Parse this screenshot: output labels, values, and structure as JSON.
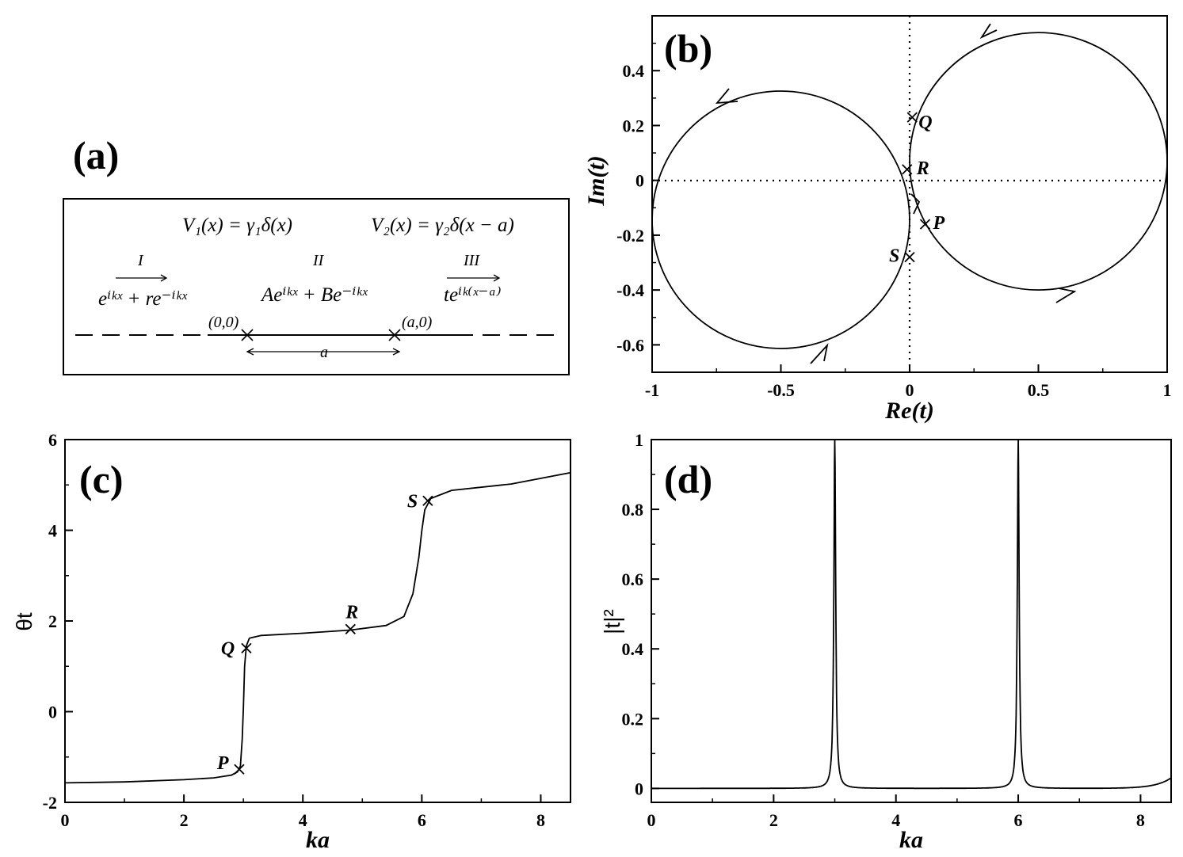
{
  "panels": {
    "a": {
      "label": "(a)",
      "v1": "V₁(x) = γ₁δ(x)",
      "v2": "V₂(x) = γ₂δ(x − a)",
      "region1": "I",
      "region2": "II",
      "region3": "III",
      "wave1": "eⁱᵏˣ + re⁻ⁱᵏˣ",
      "wave2": "Aeⁱᵏˣ + Be⁻ⁱᵏˣ",
      "wave3": "teⁱᵏ⁽ˣ⁻ᵃ⁾",
      "origin": "(0,0)",
      "apoint": "(a,0)",
      "sep": "a"
    },
    "b": {
      "label": "(b)"
    },
    "c": {
      "label": "(c)"
    },
    "d": {
      "label": "(d)"
    }
  },
  "chart_data": [
    {
      "panel": "b",
      "type": "line",
      "xlabel": "Re(t)",
      "ylabel": "Im(t)",
      "xlim": [
        -1,
        1
      ],
      "ylim": [
        -0.7,
        0.6
      ],
      "xticks": [
        "-1",
        "-0.5",
        "0",
        "0.5",
        "1"
      ],
      "yticks": [
        "-0.6",
        "-0.4",
        "-0.2",
        "0",
        "0.2",
        "0.4"
      ],
      "reference_lines": "dotted lines at Re(t)=0 and Im(t)=0",
      "series": [
        {
          "shape": "circle",
          "center": [
            0.5,
            0.075
          ],
          "radius": 0.5,
          "direction": "counterclockwise"
        },
        {
          "shape": "circle",
          "center": [
            -0.5,
            -0.14
          ],
          "radius": 0.5,
          "direction": "counterclockwise"
        }
      ],
      "markers": [
        {
          "name": "Q",
          "x": 0.01,
          "y": 0.23
        },
        {
          "name": "R",
          "x": -0.01,
          "y": 0.04
        },
        {
          "name": "P",
          "x": 0.06,
          "y": -0.16
        },
        {
          "name": "S",
          "x": 0.0,
          "y": -0.28
        }
      ]
    },
    {
      "panel": "c",
      "type": "line",
      "xlabel": "ka",
      "ylabel": "θt",
      "xlim": [
        0,
        8.5
      ],
      "ylim": [
        -2,
        6
      ],
      "xticks": [
        "0",
        "2",
        "4",
        "6",
        "8"
      ],
      "yticks": [
        "-2",
        "0",
        "2",
        "4",
        "6"
      ],
      "points": [
        [
          0,
          -1.57
        ],
        [
          1,
          -1.55
        ],
        [
          2,
          -1.5
        ],
        [
          2.5,
          -1.46
        ],
        [
          2.8,
          -1.4
        ],
        [
          2.9,
          -1.33
        ],
        [
          2.95,
          -1.2
        ],
        [
          2.98,
          -0.6
        ],
        [
          3.0,
          0.1
        ],
        [
          3.02,
          1.0
        ],
        [
          3.05,
          1.45
        ],
        [
          3.1,
          1.62
        ],
        [
          3.3,
          1.68
        ],
        [
          4.0,
          1.73
        ],
        [
          4.8,
          1.8
        ],
        [
          5.4,
          1.9
        ],
        [
          5.7,
          2.1
        ],
        [
          5.85,
          2.6
        ],
        [
          5.95,
          3.4
        ],
        [
          6.0,
          4.0
        ],
        [
          6.05,
          4.45
        ],
        [
          6.15,
          4.7
        ],
        [
          6.5,
          4.88
        ],
        [
          7.5,
          5.02
        ],
        [
          8.5,
          5.27
        ]
      ],
      "markers": [
        {
          "name": "P",
          "x": 2.93,
          "y": -1.27
        },
        {
          "name": "Q",
          "x": 3.05,
          "y": 1.4
        },
        {
          "name": "R",
          "x": 4.8,
          "y": 1.82
        },
        {
          "name": "S",
          "x": 6.1,
          "y": 4.65
        }
      ]
    },
    {
      "panel": "d",
      "type": "line",
      "xlabel": "ka",
      "ylabel": "|t|²",
      "xlim": [
        0,
        8.5
      ],
      "ylim": [
        -0.04,
        1
      ],
      "xticks": [
        "0",
        "2",
        "4",
        "6",
        "8"
      ],
      "yticks": [
        "0",
        "0.2",
        "0.4",
        "0.6",
        "0.8",
        "1"
      ],
      "series": [
        {
          "shape": "resonance peaks",
          "peaks": [
            3.0,
            6.0
          ],
          "peak_value": 1.0,
          "baseline": 0.0,
          "end_value": 0.03
        }
      ]
    }
  ]
}
